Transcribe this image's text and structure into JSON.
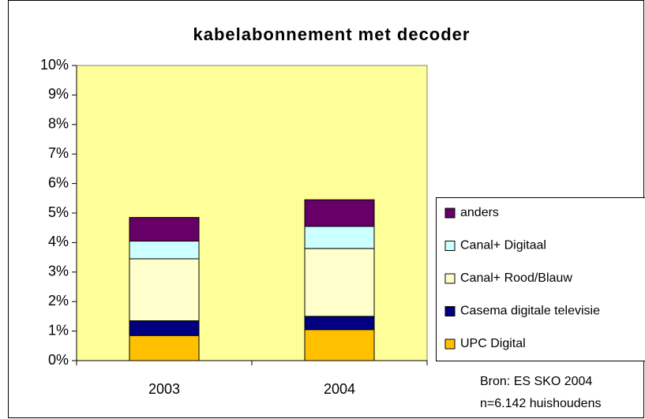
{
  "chart_data": {
    "type": "stacked_bar",
    "title": "kabelabonnement met decoder",
    "categories": [
      "2003",
      "2004"
    ],
    "series": [
      {
        "name": "UPC Digital",
        "color": "#ffc000",
        "values": [
          0.85,
          1.05
        ]
      },
      {
        "name": "Casema digitale televisie",
        "color": "#000080",
        "values": [
          0.5,
          0.45
        ]
      },
      {
        "name": "Canal+ Rood/Blauw",
        "color": "#ffffcc",
        "values": [
          2.1,
          2.3
        ]
      },
      {
        "name": "Canal+ Digitaal",
        "color": "#ccffff",
        "values": [
          0.6,
          0.75
        ]
      },
      {
        "name": "anders",
        "color": "#660066",
        "values": [
          0.8,
          0.9
        ]
      }
    ],
    "ylim": [
      0,
      10
    ],
    "yticks": [
      {
        "value": 0,
        "label": "0%"
      },
      {
        "value": 1,
        "label": "1%"
      },
      {
        "value": 2,
        "label": "2%"
      },
      {
        "value": 3,
        "label": "3%"
      },
      {
        "value": 4,
        "label": "4%"
      },
      {
        "value": 5,
        "label": "5%"
      },
      {
        "value": 6,
        "label": "6%"
      },
      {
        "value": 7,
        "label": "7%"
      },
      {
        "value": 8,
        "label": "8%"
      },
      {
        "value": 9,
        "label": "9%"
      },
      {
        "value": 10,
        "label": "10%"
      }
    ],
    "legend": "right",
    "annotations": [
      "Bron: ES SKO 2004",
      "n=6.142 huishoudens"
    ]
  }
}
